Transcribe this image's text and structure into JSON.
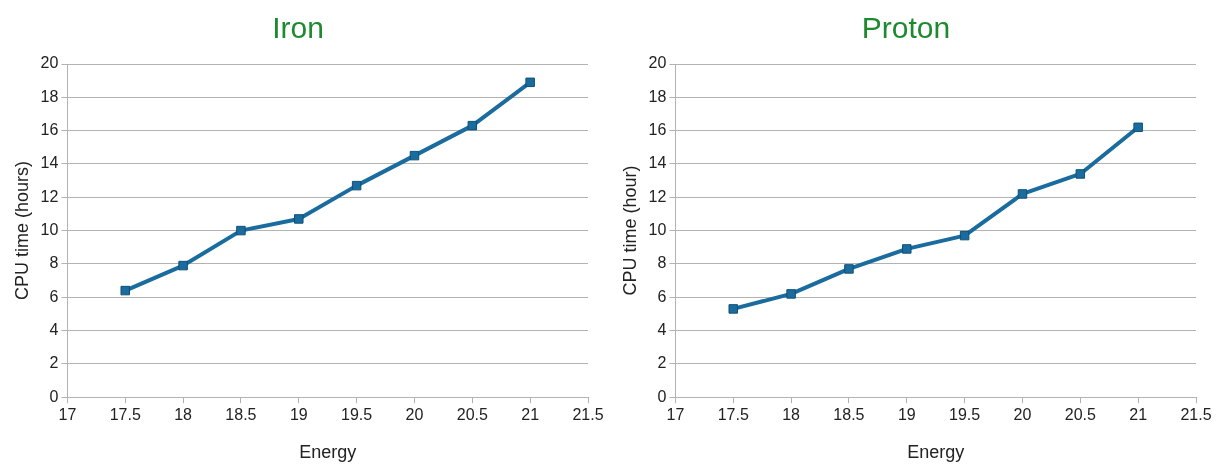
{
  "chart_data": [
    {
      "type": "line",
      "title": "Iron",
      "xlabel": "Energy",
      "ylabel": "CPU time (hours)",
      "x": [
        17.5,
        18,
        18.5,
        19,
        19.5,
        20,
        20.5,
        21
      ],
      "series": [
        {
          "color": "#1b6c9e",
          "values": [
            6.4,
            7.9,
            10.0,
            10.7,
            12.7,
            14.5,
            16.3,
            18.9
          ]
        }
      ],
      "xlim": [
        17,
        21.5
      ],
      "xticks": [
        17,
        17.5,
        18,
        18.5,
        19,
        19.5,
        20,
        20.5,
        21,
        21.5
      ],
      "ylim": [
        0,
        20
      ],
      "yticks": [
        0,
        2,
        4,
        6,
        8,
        10,
        12,
        14,
        16,
        18,
        20
      ],
      "grid": "y",
      "legend": false,
      "marker": "square",
      "line_style": "solid"
    },
    {
      "type": "line",
      "title": "Proton",
      "xlabel": "Energy",
      "ylabel": "CPU time (hour)",
      "x": [
        17.5,
        18,
        18.5,
        19,
        19.5,
        20,
        20.5,
        21
      ],
      "series": [
        {
          "color": "#1b6c9e",
          "values": [
            5.3,
            6.2,
            7.7,
            8.9,
            9.7,
            12.2,
            13.4,
            16.2
          ]
        }
      ],
      "xlim": [
        17,
        21.5
      ],
      "xticks": [
        17,
        17.5,
        18,
        18.5,
        19,
        19.5,
        20,
        20.5,
        21,
        21.5
      ],
      "ylim": [
        0,
        20
      ],
      "yticks": [
        0,
        2,
        4,
        6,
        8,
        10,
        12,
        14,
        16,
        18,
        20
      ],
      "grid": "y",
      "legend": false,
      "marker": "square",
      "line_style": "solid"
    }
  ]
}
